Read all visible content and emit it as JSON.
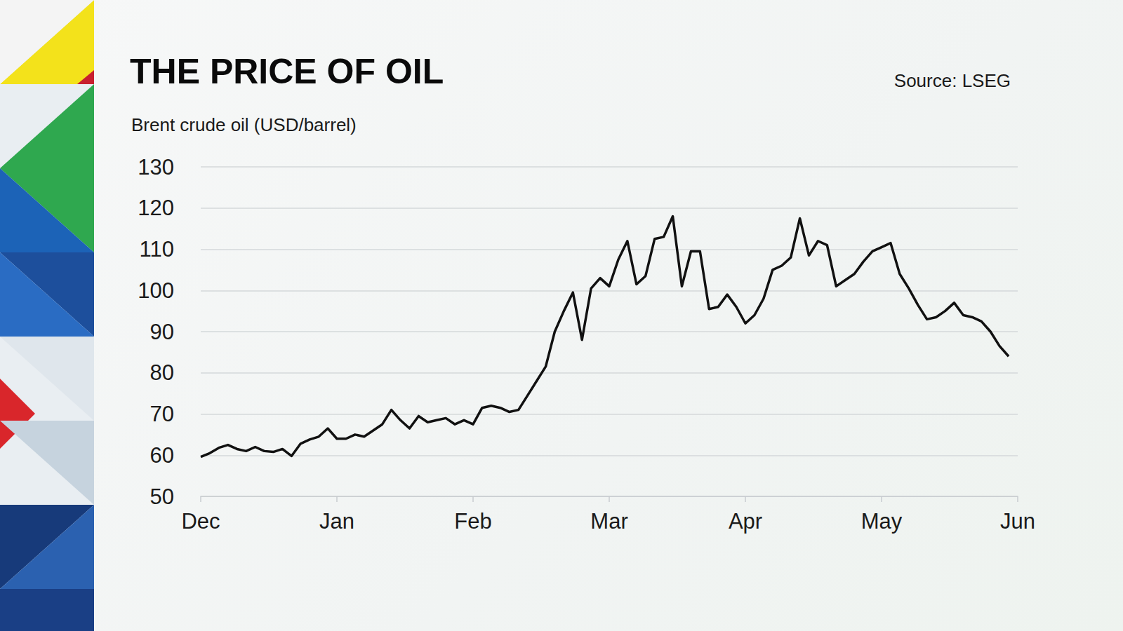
{
  "chart_data": {
    "type": "line",
    "title": "THE PRICE OF OIL",
    "subtitle": "Brent crude oil (USD/barrel)",
    "annotations": [
      "Source: LSEG"
    ],
    "categories": [
      "Dec",
      null,
      null,
      null,
      null,
      null,
      null,
      null,
      null,
      null,
      null,
      null,
      null,
      null,
      null,
      "Jan",
      null,
      null,
      null,
      null,
      null,
      null,
      null,
      null,
      null,
      null,
      null,
      null,
      null,
      null,
      "Feb",
      null,
      null,
      null,
      null,
      null,
      null,
      null,
      null,
      null,
      null,
      null,
      null,
      null,
      null,
      "Mar",
      null,
      null,
      null,
      null,
      null,
      null,
      null,
      null,
      null,
      null,
      null,
      null,
      null,
      null,
      "Apr",
      null,
      null,
      null,
      null,
      null,
      null,
      null,
      null,
      null,
      null,
      null,
      null,
      null,
      null,
      "May",
      null,
      null,
      null,
      null,
      null,
      null,
      null,
      null,
      null,
      null,
      null,
      null,
      null,
      null,
      "Jun"
    ],
    "values": [
      59.6,
      60.5,
      61.8,
      62.5,
      61.5,
      61,
      62,
      61,
      60.8,
      61.5,
      59.8,
      62.8,
      63.8,
      64.5,
      66.5,
      64,
      64,
      65,
      64.5,
      66,
      67.5,
      71,
      68.5,
      66.5,
      69.5,
      68,
      68.5,
      69,
      67.5,
      68.5,
      67.5,
      71.5,
      72,
      71.5,
      70.5,
      71,
      74.5,
      78,
      81.5,
      90,
      95,
      99.5,
      88,
      100.5,
      103,
      101,
      107.5,
      112,
      101.5,
      103.5,
      112.5,
      113,
      118,
      101,
      109.5,
      109.5,
      95.5,
      96,
      99,
      96,
      92,
      94,
      98,
      105,
      106,
      108,
      117.5,
      108.5,
      112,
      111,
      101,
      102.5,
      104,
      107,
      109.5,
      110.5,
      111.5,
      104,
      100.5,
      96.5,
      93,
      93.5,
      95,
      97,
      94,
      93.5,
      92.5,
      90,
      86.5,
      84,
      null
    ],
    "color": "#111111",
    "ylim": [
      50,
      130
    ],
    "yticks": [
      50,
      60,
      70,
      80,
      90,
      100,
      110,
      120,
      130
    ],
    "grid": true
  }
}
